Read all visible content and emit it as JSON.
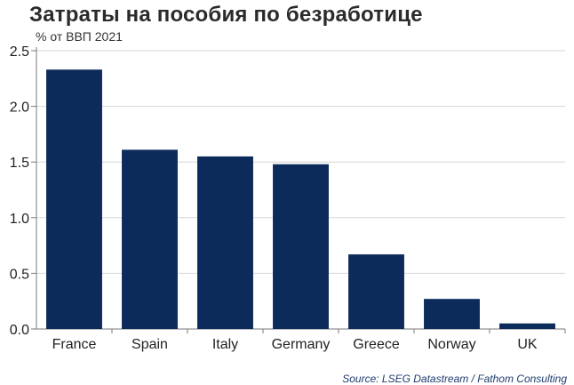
{
  "title": "Затраты на пособия по безработице",
  "subtitle": "% от ВВП 2021",
  "source": "Source: LSEG Datastream / Fathom Consulting",
  "colors": {
    "bar": "#0d2b5a",
    "grid": "#d6d6d6",
    "axis": "#7a7a7a"
  },
  "chart_data": {
    "type": "bar",
    "categories": [
      "France",
      "Spain",
      "Italy",
      "Germany",
      "Greece",
      "Norway",
      "UK"
    ],
    "values": [
      2.33,
      1.61,
      1.55,
      1.48,
      0.67,
      0.27,
      0.05
    ],
    "ylim": [
      0,
      2.5
    ],
    "yticks": [
      "0.0",
      "0.5",
      "1.0",
      "1.5",
      "2.0",
      "2.5"
    ],
    "grid": true,
    "legend": "none"
  }
}
